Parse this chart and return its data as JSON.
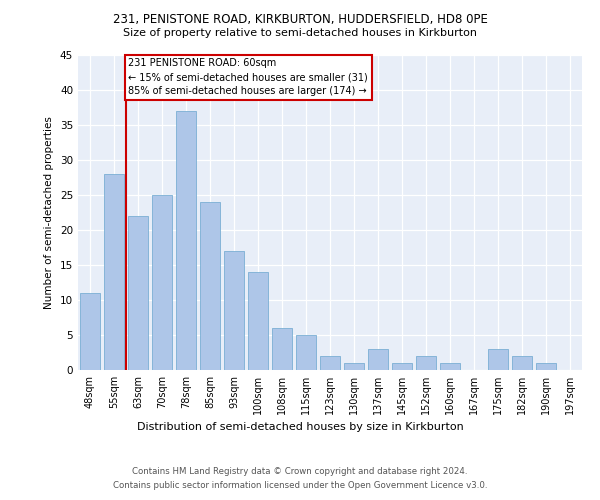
{
  "title1": "231, PENISTONE ROAD, KIRKBURTON, HUDDERSFIELD, HD8 0PE",
  "title2": "Size of property relative to semi-detached houses in Kirkburton",
  "xlabel": "Distribution of semi-detached houses by size in Kirkburton",
  "ylabel": "Number of semi-detached properties",
  "categories": [
    "48sqm",
    "55sqm",
    "63sqm",
    "70sqm",
    "78sqm",
    "85sqm",
    "93sqm",
    "100sqm",
    "108sqm",
    "115sqm",
    "123sqm",
    "130sqm",
    "137sqm",
    "145sqm",
    "152sqm",
    "160sqm",
    "167sqm",
    "175sqm",
    "182sqm",
    "190sqm",
    "197sqm"
  ],
  "values": [
    11,
    28,
    22,
    25,
    37,
    24,
    17,
    14,
    6,
    5,
    2,
    1,
    3,
    1,
    2,
    1,
    0,
    3,
    2,
    1,
    0
  ],
  "bar_color": "#aec6e8",
  "bar_edge_color": "#7aafd4",
  "vline_x": 1.5,
  "vline_color": "#cc0000",
  "annotation_title": "231 PENISTONE ROAD: 60sqm",
  "annotation_line1": "← 15% of semi-detached houses are smaller (31)",
  "annotation_line2": "85% of semi-detached houses are larger (174) →",
  "annotation_box_color": "#ffffff",
  "annotation_box_edge": "#cc0000",
  "ylim": [
    0,
    45
  ],
  "yticks": [
    0,
    5,
    10,
    15,
    20,
    25,
    30,
    35,
    40,
    45
  ],
  "footer1": "Contains HM Land Registry data © Crown copyright and database right 2024.",
  "footer2": "Contains public sector information licensed under the Open Government Licence v3.0.",
  "bg_color": "#e8eef8",
  "fig_color": "#ffffff"
}
